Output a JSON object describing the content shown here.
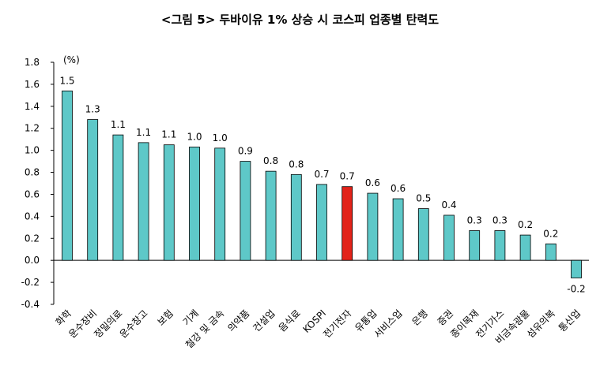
{
  "chart_data": {
    "type": "bar",
    "title": "<그림 5> 두바이유 1% 상승 시 코스피 업종별 탄력도",
    "unit_label": "(%)",
    "categories": [
      "화학",
      "운수장비",
      "정밀의료",
      "운수창고",
      "보험",
      "기계",
      "철강 및 금속",
      "의약품",
      "건설업",
      "음식료",
      "KOSPI",
      "전기전자",
      "유통업",
      "서비스업",
      "은행",
      "증권",
      "종이목재",
      "전기가스",
      "비금속광물",
      "섬유의복",
      "통신업"
    ],
    "values": [
      1.54,
      1.28,
      1.14,
      1.07,
      1.05,
      1.03,
      1.02,
      0.9,
      0.81,
      0.78,
      0.69,
      0.67,
      0.61,
      0.56,
      0.47,
      0.41,
      0.27,
      0.27,
      0.23,
      0.15,
      -0.16
    ],
    "data_labels": [
      "1.5",
      "1.3",
      "1.1",
      "1.1",
      "1.1",
      "1.0",
      "1.0",
      "0.9",
      "0.8",
      "0.8",
      "0.7",
      "0.7",
      "0.6",
      "0.6",
      "0.5",
      "0.4",
      "0.3",
      "0.3",
      "0.2",
      "0.2",
      "-0.2"
    ],
    "highlight_category": "전기전자",
    "ylim": [
      -0.4,
      1.8
    ],
    "yticks": [
      "1.8",
      "1.6",
      "1.4",
      "1.2",
      "1.0",
      "0.8",
      "0.6",
      "0.4",
      "0.2",
      "0.0",
      "-0.2",
      "-0.4"
    ],
    "ytick_values": [
      1.8,
      1.6,
      1.4,
      1.2,
      1.0,
      0.8,
      0.6,
      0.4,
      0.2,
      0.0,
      -0.2,
      -0.4
    ],
    "grid": false,
    "colors": {
      "bar": "#5ec8c8",
      "highlight": "#e2231a",
      "outline": "#000000"
    }
  }
}
